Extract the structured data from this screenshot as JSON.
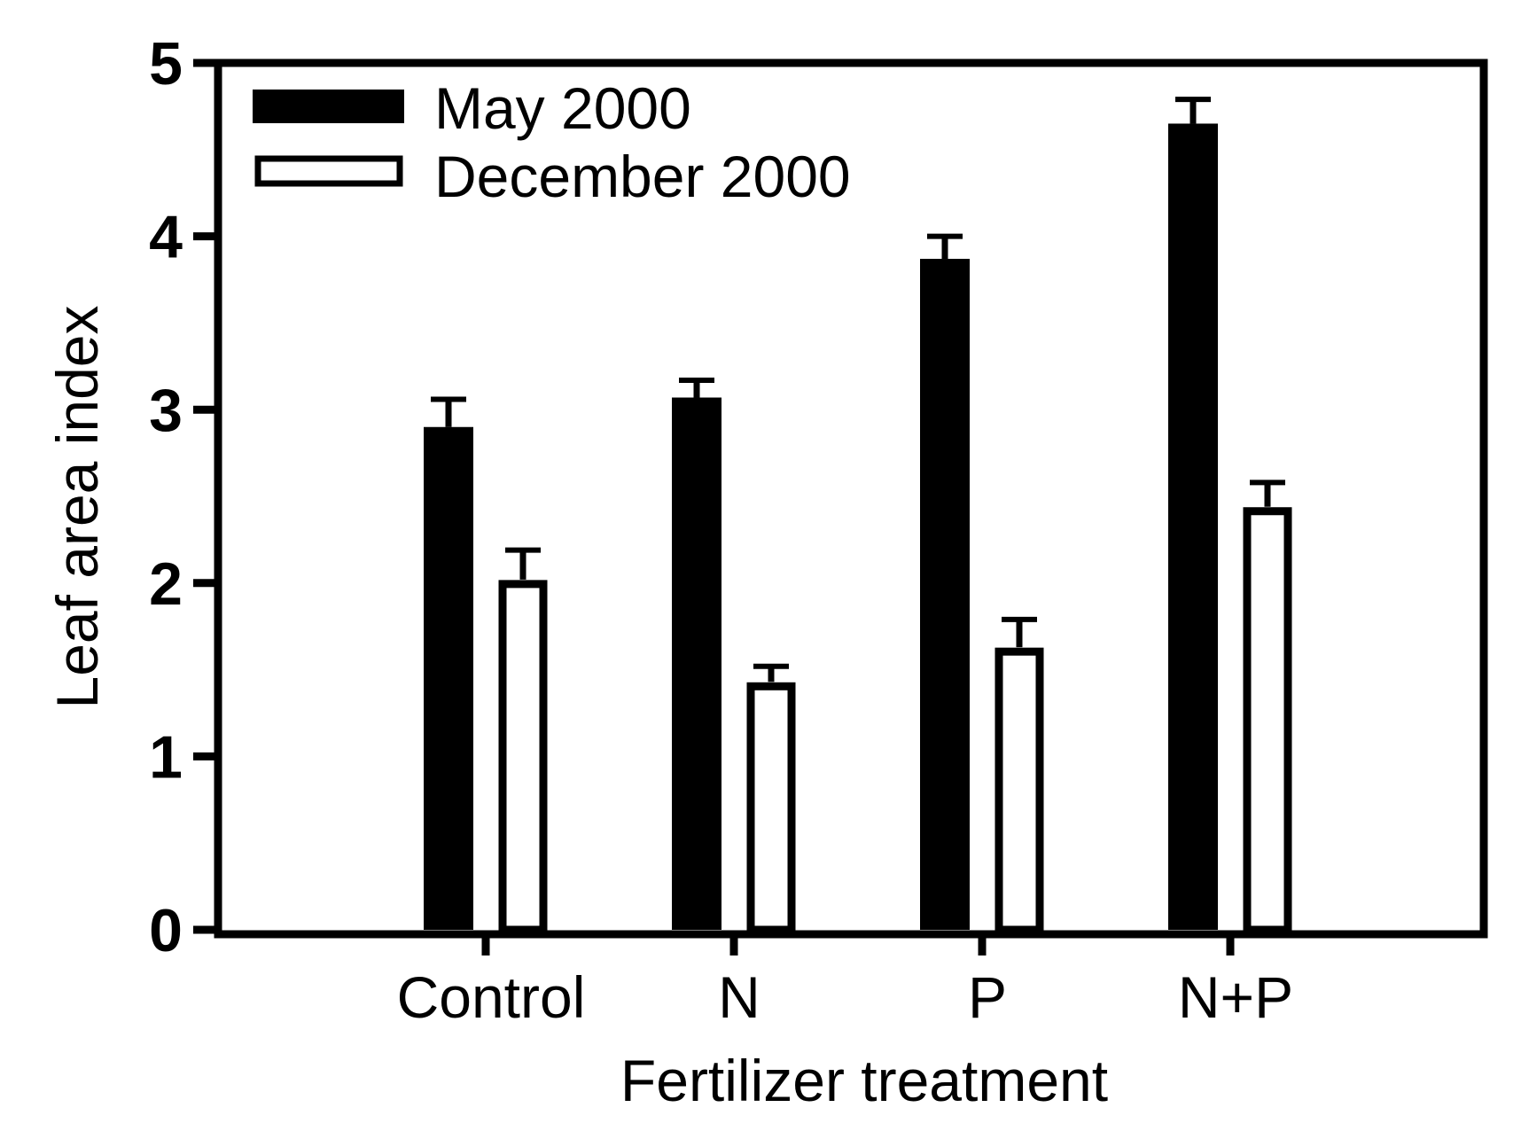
{
  "chart_data": {
    "type": "bar",
    "xlabel": "Fertilizer treatment",
    "ylabel": "Leaf area index",
    "categories": [
      "Control",
      "N",
      "P",
      "N+P"
    ],
    "ylim": [
      0,
      5
    ],
    "yticks": [
      0,
      1,
      2,
      3,
      4,
      5
    ],
    "ytick_labels": [
      "0",
      "1",
      "2",
      "3",
      "4",
      "5"
    ],
    "grid": false,
    "legend_position": "top-left",
    "series": [
      {
        "name": "May 2000",
        "fill": "#000000",
        "values": [
          2.9,
          3.07,
          3.87,
          4.65
        ],
        "errors": [
          0.16,
          0.1,
          0.13,
          0.14
        ]
      },
      {
        "name": "December 2000",
        "fill": "#ffffff",
        "values": [
          2.02,
          1.43,
          1.63,
          2.44
        ],
        "errors": [
          0.17,
          0.09,
          0.16,
          0.14
        ]
      }
    ]
  }
}
